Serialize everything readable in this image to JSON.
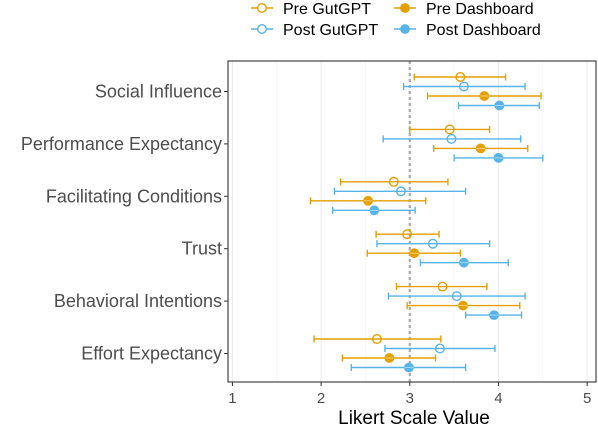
{
  "chart_data": {
    "type": "scatter",
    "subtype": "dot-and-whisker",
    "xlabel": "Likert Scale Value",
    "xlim": [
      0.95,
      5.1
    ],
    "xticks": [
      1,
      2,
      3,
      4,
      5
    ],
    "reference_line": 3,
    "grid": true,
    "legend_position": "top",
    "categories": [
      "Social Influence",
      "Performance Expectancy",
      "Facilitating Conditions",
      "Trust",
      "Behavioral Intentions",
      "Effort Expectancy"
    ],
    "series": [
      {
        "name": "Pre GutGPT",
        "color": "#E69F00",
        "marker": "open-circle",
        "points": [
          {
            "category": "Social Influence",
            "mean": 3.57,
            "low": 3.05,
            "high": 4.08
          },
          {
            "category": "Performance Expectancy",
            "mean": 3.45,
            "low": 3.0,
            "high": 3.9
          },
          {
            "category": "Facilitating Conditions",
            "mean": 2.82,
            "low": 2.22,
            "high": 3.43
          },
          {
            "category": "Trust",
            "mean": 2.97,
            "low": 2.62,
            "high": 3.33
          },
          {
            "category": "Behavioral Intentions",
            "mean": 3.37,
            "low": 2.85,
            "high": 3.87
          },
          {
            "category": "Effort Expectancy",
            "mean": 2.63,
            "low": 1.92,
            "high": 3.35
          }
        ]
      },
      {
        "name": "Post GutGPT",
        "color": "#56B4E9",
        "marker": "open-circle",
        "points": [
          {
            "category": "Social Influence",
            "mean": 3.61,
            "low": 2.93,
            "high": 4.3
          },
          {
            "category": "Performance Expectancy",
            "mean": 3.47,
            "low": 2.7,
            "high": 4.25
          },
          {
            "category": "Facilitating Conditions",
            "mean": 2.9,
            "low": 2.15,
            "high": 3.63
          },
          {
            "category": "Trust",
            "mean": 3.26,
            "low": 2.63,
            "high": 3.9
          },
          {
            "category": "Behavioral Intentions",
            "mean": 3.53,
            "low": 2.76,
            "high": 4.3
          },
          {
            "category": "Effort Expectancy",
            "mean": 3.34,
            "low": 2.72,
            "high": 3.96
          }
        ]
      },
      {
        "name": "Pre Dashboard",
        "color": "#E69F00",
        "marker": "filled-circle",
        "points": [
          {
            "category": "Social Influence",
            "mean": 3.84,
            "low": 3.2,
            "high": 4.48
          },
          {
            "category": "Performance Expectancy",
            "mean": 3.8,
            "low": 3.27,
            "high": 4.33
          },
          {
            "category": "Facilitating Conditions",
            "mean": 2.53,
            "low": 1.88,
            "high": 3.18
          },
          {
            "category": "Trust",
            "mean": 3.05,
            "low": 2.52,
            "high": 3.57
          },
          {
            "category": "Behavioral Intentions",
            "mean": 3.6,
            "low": 2.97,
            "high": 4.24
          },
          {
            "category": "Effort Expectancy",
            "mean": 2.77,
            "low": 2.24,
            "high": 3.29
          }
        ]
      },
      {
        "name": "Post Dashboard",
        "color": "#56B4E9",
        "marker": "filled-circle",
        "points": [
          {
            "category": "Social Influence",
            "mean": 4.01,
            "low": 3.55,
            "high": 4.46
          },
          {
            "category": "Performance Expectancy",
            "mean": 4.0,
            "low": 3.5,
            "high": 4.5
          },
          {
            "category": "Facilitating Conditions",
            "mean": 2.6,
            "low": 2.13,
            "high": 3.06
          },
          {
            "category": "Trust",
            "mean": 3.61,
            "low": 3.12,
            "high": 4.11
          },
          {
            "category": "Behavioral Intentions",
            "mean": 3.95,
            "low": 3.63,
            "high": 4.26
          },
          {
            "category": "Effort Expectancy",
            "mean": 2.99,
            "low": 2.34,
            "high": 3.63
          }
        ]
      }
    ]
  }
}
